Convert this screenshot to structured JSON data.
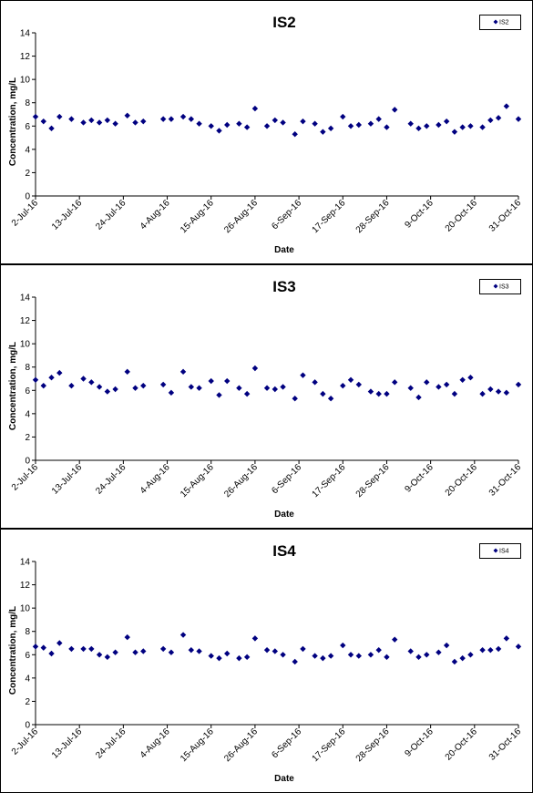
{
  "chart_data": [
    {
      "type": "scatter",
      "title": "IS2",
      "xlabel": "Date",
      "ylabel": "Concentration, mg/L",
      "ylim": [
        0,
        14
      ],
      "yticks": [
        0,
        2,
        4,
        6,
        8,
        10,
        12,
        14
      ],
      "xlim": [
        "2016-07-02",
        "2016-10-31"
      ],
      "xtick_labels": [
        "2-Jul-16",
        "13-Jul-16",
        "24-Jul-16",
        "4-Aug-16",
        "15-Aug-16",
        "26-Aug-16",
        "6-Sep-16",
        "17-Sep-16",
        "28-Sep-16",
        "9-Oct-16",
        "20-Oct-16",
        "31-Oct-16"
      ],
      "grid": false,
      "legend_position": "top-right",
      "marker": "diamond",
      "color": "#000080",
      "series": [
        {
          "name": "IS2",
          "x": [
            "2016-07-02",
            "2016-07-04",
            "2016-07-06",
            "2016-07-08",
            "2016-07-11",
            "2016-07-14",
            "2016-07-16",
            "2016-07-18",
            "2016-07-20",
            "2016-07-22",
            "2016-07-25",
            "2016-07-27",
            "2016-07-29",
            "2016-08-03",
            "2016-08-05",
            "2016-08-08",
            "2016-08-10",
            "2016-08-12",
            "2016-08-15",
            "2016-08-17",
            "2016-08-19",
            "2016-08-22",
            "2016-08-24",
            "2016-08-26",
            "2016-08-29",
            "2016-08-31",
            "2016-09-02",
            "2016-09-05",
            "2016-09-07",
            "2016-09-10",
            "2016-09-12",
            "2016-09-14",
            "2016-09-17",
            "2016-09-19",
            "2016-09-21",
            "2016-09-24",
            "2016-09-26",
            "2016-09-28",
            "2016-09-30",
            "2016-10-04",
            "2016-10-06",
            "2016-10-08",
            "2016-10-11",
            "2016-10-13",
            "2016-10-15",
            "2016-10-17",
            "2016-10-19",
            "2016-10-22",
            "2016-10-24",
            "2016-10-26",
            "2016-10-28",
            "2016-10-31"
          ],
          "y": [
            6.8,
            6.4,
            5.8,
            6.8,
            6.6,
            6.3,
            6.5,
            6.3,
            6.5,
            6.2,
            6.9,
            6.3,
            6.4,
            6.6,
            6.6,
            6.8,
            6.6,
            6.2,
            6.0,
            5.6,
            6.1,
            6.2,
            5.9,
            7.5,
            6.0,
            6.5,
            6.3,
            5.3,
            6.4,
            6.2,
            5.5,
            5.8,
            6.8,
            6.0,
            6.1,
            6.2,
            6.6,
            5.9,
            7.4,
            6.2,
            5.8,
            6.0,
            6.1,
            6.4,
            5.5,
            5.9,
            6.0,
            5.9,
            6.5,
            6.7,
            7.7,
            6.6
          ]
        }
      ]
    },
    {
      "type": "scatter",
      "title": "IS3",
      "xlabel": "Date",
      "ylabel": "Concentration, mg/L",
      "ylim": [
        0,
        14
      ],
      "yticks": [
        0,
        2,
        4,
        6,
        8,
        10,
        12,
        14
      ],
      "xlim": [
        "2016-07-02",
        "2016-10-31"
      ],
      "xtick_labels": [
        "2-Jul-16",
        "13-Jul-16",
        "24-Jul-16",
        "4-Aug-16",
        "15-Aug-16",
        "26-Aug-16",
        "6-Sep-16",
        "17-Sep-16",
        "28-Sep-16",
        "9-Oct-16",
        "20-Oct-16",
        "31-Oct-16"
      ],
      "grid": false,
      "legend_position": "top-right",
      "marker": "diamond",
      "color": "#000080",
      "series": [
        {
          "name": "IS3",
          "x": [
            "2016-07-02",
            "2016-07-04",
            "2016-07-06",
            "2016-07-08",
            "2016-07-11",
            "2016-07-14",
            "2016-07-16",
            "2016-07-18",
            "2016-07-20",
            "2016-07-22",
            "2016-07-25",
            "2016-07-27",
            "2016-07-29",
            "2016-08-03",
            "2016-08-05",
            "2016-08-08",
            "2016-08-10",
            "2016-08-12",
            "2016-08-15",
            "2016-08-17",
            "2016-08-19",
            "2016-08-22",
            "2016-08-24",
            "2016-08-26",
            "2016-08-29",
            "2016-08-31",
            "2016-09-02",
            "2016-09-05",
            "2016-09-07",
            "2016-09-10",
            "2016-09-12",
            "2016-09-14",
            "2016-09-17",
            "2016-09-19",
            "2016-09-21",
            "2016-09-24",
            "2016-09-26",
            "2016-09-28",
            "2016-09-30",
            "2016-10-04",
            "2016-10-06",
            "2016-10-08",
            "2016-10-11",
            "2016-10-13",
            "2016-10-15",
            "2016-10-17",
            "2016-10-19",
            "2016-10-22",
            "2016-10-24",
            "2016-10-26",
            "2016-10-28",
            "2016-10-31"
          ],
          "y": [
            6.9,
            6.4,
            7.1,
            7.5,
            6.4,
            7.0,
            6.7,
            6.3,
            5.9,
            6.1,
            7.6,
            6.2,
            6.4,
            6.5,
            5.8,
            7.6,
            6.3,
            6.2,
            6.8,
            5.6,
            6.8,
            6.2,
            5.7,
            7.9,
            6.2,
            6.1,
            6.3,
            5.3,
            7.3,
            6.7,
            5.7,
            5.3,
            6.4,
            6.9,
            6.5,
            5.9,
            5.7,
            5.7,
            6.7,
            6.2,
            5.4,
            6.7,
            6.3,
            6.5,
            5.7,
            6.9,
            7.1,
            5.7,
            6.1,
            5.9,
            5.8,
            6.5
          ]
        }
      ]
    },
    {
      "type": "scatter",
      "title": "IS4",
      "xlabel": "Date",
      "ylabel": "Concentration, mg/L",
      "ylim": [
        0,
        14
      ],
      "yticks": [
        0,
        2,
        4,
        6,
        8,
        10,
        12,
        14
      ],
      "xlim": [
        "2016-07-02",
        "2016-10-31"
      ],
      "xtick_labels": [
        "2-Jul-16",
        "13-Jul-16",
        "24-Jul-16",
        "4-Aug-16",
        "15-Aug-16",
        "26-Aug-16",
        "6-Sep-16",
        "17-Sep-16",
        "28-Sep-16",
        "9-Oct-16",
        "20-Oct-16",
        "31-Oct-16"
      ],
      "grid": false,
      "legend_position": "top-right",
      "marker": "diamond",
      "color": "#000080",
      "series": [
        {
          "name": "IS4",
          "x": [
            "2016-07-02",
            "2016-07-04",
            "2016-07-06",
            "2016-07-08",
            "2016-07-11",
            "2016-07-14",
            "2016-07-16",
            "2016-07-18",
            "2016-07-20",
            "2016-07-22",
            "2016-07-25",
            "2016-07-27",
            "2016-07-29",
            "2016-08-03",
            "2016-08-05",
            "2016-08-08",
            "2016-08-10",
            "2016-08-12",
            "2016-08-15",
            "2016-08-17",
            "2016-08-19",
            "2016-08-22",
            "2016-08-24",
            "2016-08-26",
            "2016-08-29",
            "2016-08-31",
            "2016-09-02",
            "2016-09-05",
            "2016-09-07",
            "2016-09-10",
            "2016-09-12",
            "2016-09-14",
            "2016-09-17",
            "2016-09-19",
            "2016-09-21",
            "2016-09-24",
            "2016-09-26",
            "2016-09-28",
            "2016-09-30",
            "2016-10-04",
            "2016-10-06",
            "2016-10-08",
            "2016-10-11",
            "2016-10-13",
            "2016-10-15",
            "2016-10-17",
            "2016-10-19",
            "2016-10-22",
            "2016-10-24",
            "2016-10-26",
            "2016-10-28",
            "2016-10-31"
          ],
          "y": [
            6.7,
            6.6,
            6.1,
            7.0,
            6.5,
            6.5,
            6.5,
            6.0,
            5.8,
            6.2,
            7.5,
            6.2,
            6.3,
            6.5,
            6.2,
            7.7,
            6.4,
            6.3,
            5.9,
            5.7,
            6.1,
            5.7,
            5.8,
            7.4,
            6.4,
            6.3,
            6.0,
            5.4,
            6.5,
            5.9,
            5.7,
            5.9,
            6.8,
            6.0,
            5.9,
            6.0,
            6.4,
            5.8,
            7.3,
            6.3,
            5.8,
            6.0,
            6.2,
            6.8,
            5.4,
            5.7,
            6.0,
            6.4,
            6.4,
            6.5,
            7.4,
            6.7
          ]
        }
      ]
    }
  ]
}
